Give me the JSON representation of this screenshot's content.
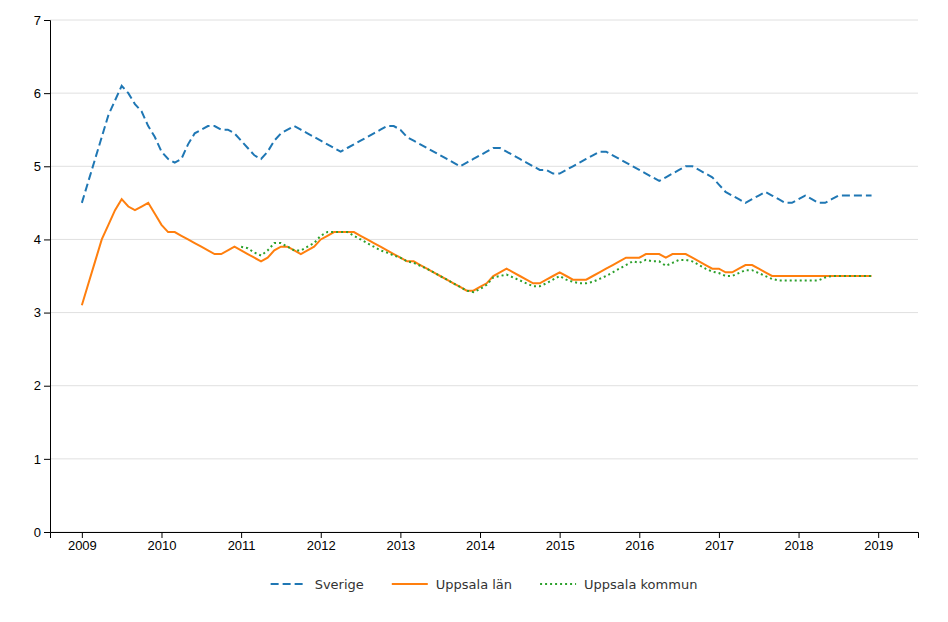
{
  "chart_data": {
    "type": "line",
    "x": [
      2009,
      2009.0833333333,
      2009.1666666667,
      2009.25,
      2009.3333333333,
      2009.4166666667,
      2009.5,
      2009.5833333333,
      2009.6666666667,
      2009.75,
      2009.8333333333,
      2009.9166666667,
      2010,
      2010.0833333333,
      2010.1666666667,
      2010.25,
      2010.3333333333,
      2010.4166666667,
      2010.5,
      2010.5833333333,
      2010.6666666667,
      2010.75,
      2010.8333333333,
      2010.9166666667,
      2011,
      2011.0833333333,
      2011.1666666667,
      2011.25,
      2011.3333333333,
      2011.4166666667,
      2011.5,
      2011.5833333333,
      2011.6666666667,
      2011.75,
      2011.8333333333,
      2011.9166666667,
      2012,
      2012.0833333333,
      2012.1666666667,
      2012.25,
      2012.3333333333,
      2012.4166666667,
      2012.5,
      2012.5833333333,
      2012.6666666667,
      2012.75,
      2012.8333333333,
      2012.9166666667,
      2013,
      2013.0833333333,
      2013.1666666667,
      2013.25,
      2013.3333333333,
      2013.4166666667,
      2013.5,
      2013.5833333333,
      2013.6666666667,
      2013.75,
      2013.8333333333,
      2013.9166666667,
      2014,
      2014.0833333333,
      2014.1666666667,
      2014.25,
      2014.3333333333,
      2014.4166666667,
      2014.5,
      2014.5833333333,
      2014.6666666667,
      2014.75,
      2014.8333333333,
      2014.9166666667,
      2015,
      2015.0833333333,
      2015.1666666667,
      2015.25,
      2015.3333333333,
      2015.4166666667,
      2015.5,
      2015.5833333333,
      2015.6666666667,
      2015.75,
      2015.8333333333,
      2015.9166666667,
      2016,
      2016.0833333333,
      2016.1666666667,
      2016.25,
      2016.3333333333,
      2016.4166666667,
      2016.5,
      2016.5833333333,
      2016.6666666667,
      2016.75,
      2016.8333333333,
      2016.9166666667,
      2017,
      2017.0833333333,
      2017.1666666667,
      2017.25,
      2017.3333333333,
      2017.4166666667,
      2017.5,
      2017.5833333333,
      2017.6666666667,
      2017.75,
      2017.8333333333,
      2017.9166666667,
      2018,
      2018.0833333333,
      2018.1666666667,
      2018.25,
      2018.3333333333,
      2018.4166666667,
      2018.5,
      2018.5833333333,
      2018.6666666667,
      2018.75,
      2018.8333333333,
      2018.9166666667
    ],
    "series": [
      {
        "name": "Sverige",
        "line_style": "dashed",
        "values": [
          4.5,
          4.8,
          5.1,
          5.4,
          5.7,
          5.9,
          6.1,
          6.0,
          5.85,
          5.75,
          5.55,
          5.4,
          5.2,
          5.1,
          5.05,
          5.1,
          5.3,
          5.45,
          5.5,
          5.55,
          5.55,
          5.5,
          5.5,
          5.45,
          5.35,
          5.25,
          5.15,
          5.1,
          5.2,
          5.35,
          5.45,
          5.5,
          5.55,
          5.5,
          5.45,
          5.4,
          5.35,
          5.3,
          5.25,
          5.2,
          5.25,
          5.3,
          5.35,
          5.4,
          5.45,
          5.5,
          5.55,
          5.55,
          5.5,
          5.4,
          5.35,
          5.3,
          5.25,
          5.2,
          5.15,
          5.1,
          5.05,
          5.0,
          5.05,
          5.1,
          5.15,
          5.2,
          5.25,
          5.25,
          5.2,
          5.15,
          5.1,
          5.05,
          5.0,
          4.95,
          4.95,
          4.9,
          4.9,
          4.95,
          5.0,
          5.05,
          5.1,
          5.15,
          5.2,
          5.2,
          5.15,
          5.1,
          5.05,
          5.0,
          4.95,
          4.9,
          4.85,
          4.8,
          4.85,
          4.9,
          4.95,
          5.0,
          5.0,
          4.95,
          4.9,
          4.85,
          4.75,
          4.65,
          4.6,
          4.55,
          4.5,
          4.55,
          4.6,
          4.65,
          4.6,
          4.55,
          4.5,
          4.5,
          4.55,
          4.6,
          4.55,
          4.5,
          4.5,
          4.55,
          4.6,
          4.6,
          4.6,
          4.6,
          4.6,
          4.6
        ]
      },
      {
        "name": "Uppsala län",
        "line_style": "solid",
        "values": [
          3.1,
          3.4,
          3.7,
          4.0,
          4.2,
          4.4,
          4.55,
          4.45,
          4.4,
          4.45,
          4.5,
          4.35,
          4.2,
          4.1,
          4.1,
          4.05,
          4.0,
          3.95,
          3.9,
          3.85,
          3.8,
          3.8,
          3.85,
          3.9,
          3.85,
          3.8,
          3.75,
          3.7,
          3.75,
          3.85,
          3.9,
          3.9,
          3.85,
          3.8,
          3.85,
          3.9,
          4.0,
          4.05,
          4.1,
          4.1,
          4.1,
          4.1,
          4.05,
          4.0,
          3.95,
          3.9,
          3.85,
          3.8,
          3.75,
          3.7,
          3.7,
          3.65,
          3.6,
          3.55,
          3.5,
          3.45,
          3.4,
          3.35,
          3.3,
          3.3,
          3.35,
          3.4,
          3.5,
          3.55,
          3.6,
          3.55,
          3.5,
          3.45,
          3.4,
          3.4,
          3.45,
          3.5,
          3.55,
          3.5,
          3.45,
          3.45,
          3.45,
          3.5,
          3.55,
          3.6,
          3.65,
          3.7,
          3.75,
          3.75,
          3.75,
          3.8,
          3.8,
          3.8,
          3.75,
          3.8,
          3.8,
          3.8,
          3.75,
          3.7,
          3.65,
          3.6,
          3.6,
          3.55,
          3.55,
          3.6,
          3.65,
          3.65,
          3.6,
          3.55,
          3.5,
          3.5,
          3.5,
          3.5,
          3.5,
          3.5,
          3.5,
          3.5,
          3.5,
          3.5,
          3.5,
          3.5,
          3.5,
          3.5,
          3.5,
          3.5
        ]
      },
      {
        "name": "Uppsala kommun",
        "line_style": "dotted",
        "values": [
          null,
          null,
          null,
          null,
          null,
          null,
          null,
          null,
          null,
          null,
          null,
          null,
          null,
          null,
          null,
          null,
          null,
          null,
          null,
          null,
          null,
          null,
          null,
          null,
          3.9,
          3.88,
          3.82,
          3.78,
          3.85,
          3.95,
          3.95,
          3.9,
          3.85,
          3.85,
          3.9,
          3.95,
          4.05,
          4.1,
          4.1,
          4.1,
          4.1,
          4.05,
          4.0,
          3.95,
          3.9,
          3.85,
          3.82,
          3.78,
          3.75,
          3.7,
          3.68,
          3.64,
          3.6,
          3.55,
          3.5,
          3.45,
          3.4,
          3.35,
          3.3,
          3.28,
          3.32,
          3.38,
          3.48,
          3.5,
          3.52,
          3.48,
          3.44,
          3.4,
          3.36,
          3.36,
          3.4,
          3.45,
          3.5,
          3.45,
          3.42,
          3.4,
          3.4,
          3.42,
          3.46,
          3.5,
          3.55,
          3.6,
          3.65,
          3.7,
          3.68,
          3.72,
          3.7,
          3.7,
          3.64,
          3.68,
          3.72,
          3.72,
          3.7,
          3.65,
          3.6,
          3.56,
          3.54,
          3.5,
          3.5,
          3.54,
          3.58,
          3.58,
          3.54,
          3.5,
          3.46,
          3.44,
          3.44,
          3.44,
          3.44,
          3.44,
          3.44,
          3.44,
          3.48,
          3.5,
          3.5,
          3.5,
          3.5,
          3.5,
          3.5,
          3.5
        ]
      }
    ],
    "xlim": [
      2008.6,
      2019.5
    ],
    "xticks": [
      2009,
      2010,
      2011,
      2012,
      2013,
      2014,
      2015,
      2016,
      2017,
      2018,
      2019
    ],
    "ylim": [
      0,
      7
    ],
    "yticks": [
      0,
      1,
      2,
      3,
      4,
      5,
      6,
      7
    ],
    "grid": true,
    "legend": "bottom"
  }
}
